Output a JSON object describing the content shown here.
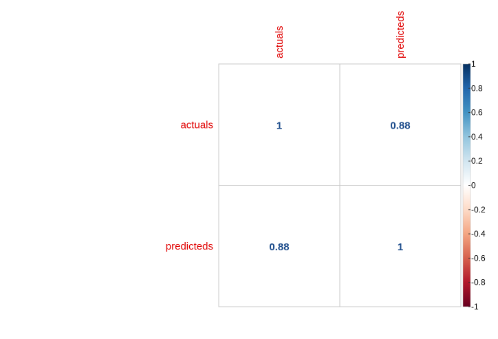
{
  "chart_data": {
    "type": "heatmap",
    "title": "",
    "row_labels": [
      "actuals",
      "predicteds"
    ],
    "col_labels": [
      "actuals",
      "predicteds"
    ],
    "values": [
      [
        1,
        0.88
      ],
      [
        0.88,
        1
      ]
    ],
    "value_labels": [
      [
        "1",
        "0.88"
      ],
      [
        "0.88",
        "1"
      ]
    ],
    "value_range": [
      -1,
      1
    ],
    "colorbar_ticks": [
      "1",
      "0.8",
      "0.6",
      "0.4",
      "0.2",
      "0",
      "-0.2",
      "-0.4",
      "-0.6",
      "-0.8",
      "-1"
    ],
    "colorbar_tick_values": [
      1,
      0.8,
      0.6,
      0.4,
      0.2,
      0,
      -0.2,
      -0.4,
      -0.6,
      -0.8,
      -1
    ],
    "label_color": "#e00000",
    "value_text_color": "#1a4a8a",
    "grid_color": "#c8c8c8",
    "colormap": [
      "#67001f",
      "#b2182b",
      "#d6604d",
      "#f4a582",
      "#fddbc7",
      "#ffffff",
      "#d1e5f0",
      "#92c5de",
      "#4393c3",
      "#2166ac",
      "#053061"
    ]
  }
}
